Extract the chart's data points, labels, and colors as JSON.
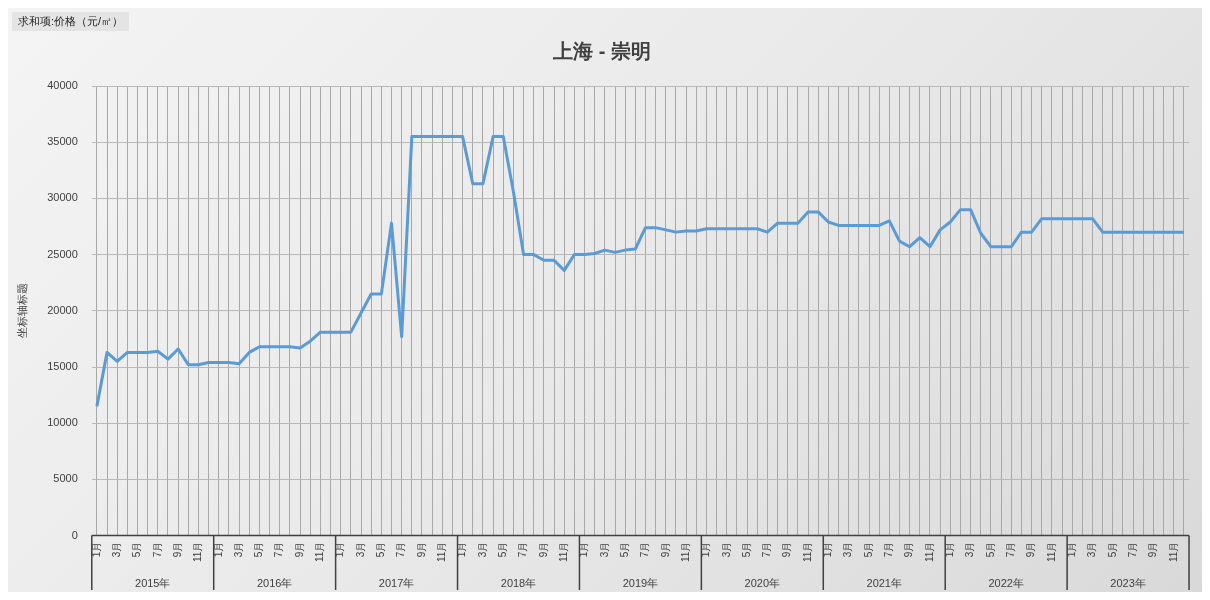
{
  "chart_data": {
    "type": "line",
    "title": "上海 - 崇明",
    "ylabel": "坐标轴标题",
    "annotations": [
      "求和项:价格（元/㎡）",
      "2015年",
      "2016年",
      "2017年",
      "2018年",
      "2019年",
      "2020年",
      "2021年",
      "2022年",
      "2023年"
    ],
    "categories": [
      "1月",
      null,
      "3月",
      null,
      "5月",
      null,
      "7月",
      null,
      "9月",
      null,
      "11月",
      null,
      "1月",
      null,
      "3月",
      null,
      "5月",
      null,
      "7月",
      null,
      "9月",
      null,
      "11月",
      null,
      "1月",
      null,
      "3月",
      null,
      "5月",
      null,
      "7月",
      null,
      "9月",
      null,
      "11月",
      null,
      "1月",
      null,
      "3月",
      null,
      "5月",
      null,
      "7月",
      null,
      "9月",
      null,
      "11月",
      null,
      "1月",
      null,
      "3月",
      null,
      "5月",
      null,
      "7月",
      null,
      "9月",
      null,
      "11月",
      null,
      "1月",
      null,
      "3月",
      null,
      "5月",
      null,
      "7月",
      null,
      "9月",
      null,
      "11月",
      null,
      "1月",
      null,
      "3月",
      null,
      "5月",
      null,
      "7月",
      null,
      "9月",
      null,
      "11月",
      null,
      "1月",
      null,
      "3月",
      null,
      "5月",
      null,
      "7月",
      null,
      "9月",
      null,
      "11月",
      null,
      "1月",
      null,
      "3月",
      null,
      "5月",
      null,
      "7月",
      null,
      "9月",
      null,
      "11月",
      null
    ],
    "series": [
      {
        "color": "#5b9bd5",
        "values": [
          11500,
          16300,
          15500,
          16300,
          16300,
          16300,
          16400,
          15700,
          16600,
          15200,
          15200,
          15400,
          15400,
          15400,
          15300,
          16300,
          16800,
          16800,
          16800,
          16800,
          16700,
          17300,
          18100,
          18100,
          18100,
          18100,
          19800,
          21500,
          21500,
          27800,
          17700,
          35500,
          35500,
          35500,
          35500,
          35500,
          35500,
          31300,
          31300,
          35500,
          35500,
          30600,
          25000,
          25000,
          24500,
          24500,
          23600,
          25000,
          25000,
          25100,
          25400,
          25200,
          25400,
          25500,
          27400,
          27400,
          27200,
          27000,
          27100,
          27100,
          27300,
          27300,
          27300,
          27300,
          27300,
          27300,
          27000,
          27800,
          27800,
          27800,
          28800,
          28800,
          27900,
          27600,
          27600,
          27600,
          27600,
          27600,
          28000,
          26200,
          25700,
          26500,
          25700,
          27200,
          27900,
          29000,
          29000,
          26900,
          25700,
          25700,
          25700,
          27000,
          27000,
          28200,
          28200,
          28200,
          28200,
          28200,
          28200,
          27000,
          27000,
          27000,
          27000,
          27000,
          27000,
          27000,
          27000,
          27000
        ]
      }
    ],
    "ylim": [
      0,
      40000
    ],
    "yticks": [
      0,
      5000,
      10000,
      15000,
      20000,
      25000,
      30000,
      35000,
      40000
    ],
    "grid": true,
    "legend": false,
    "marker": "none",
    "line_style": "solid"
  }
}
